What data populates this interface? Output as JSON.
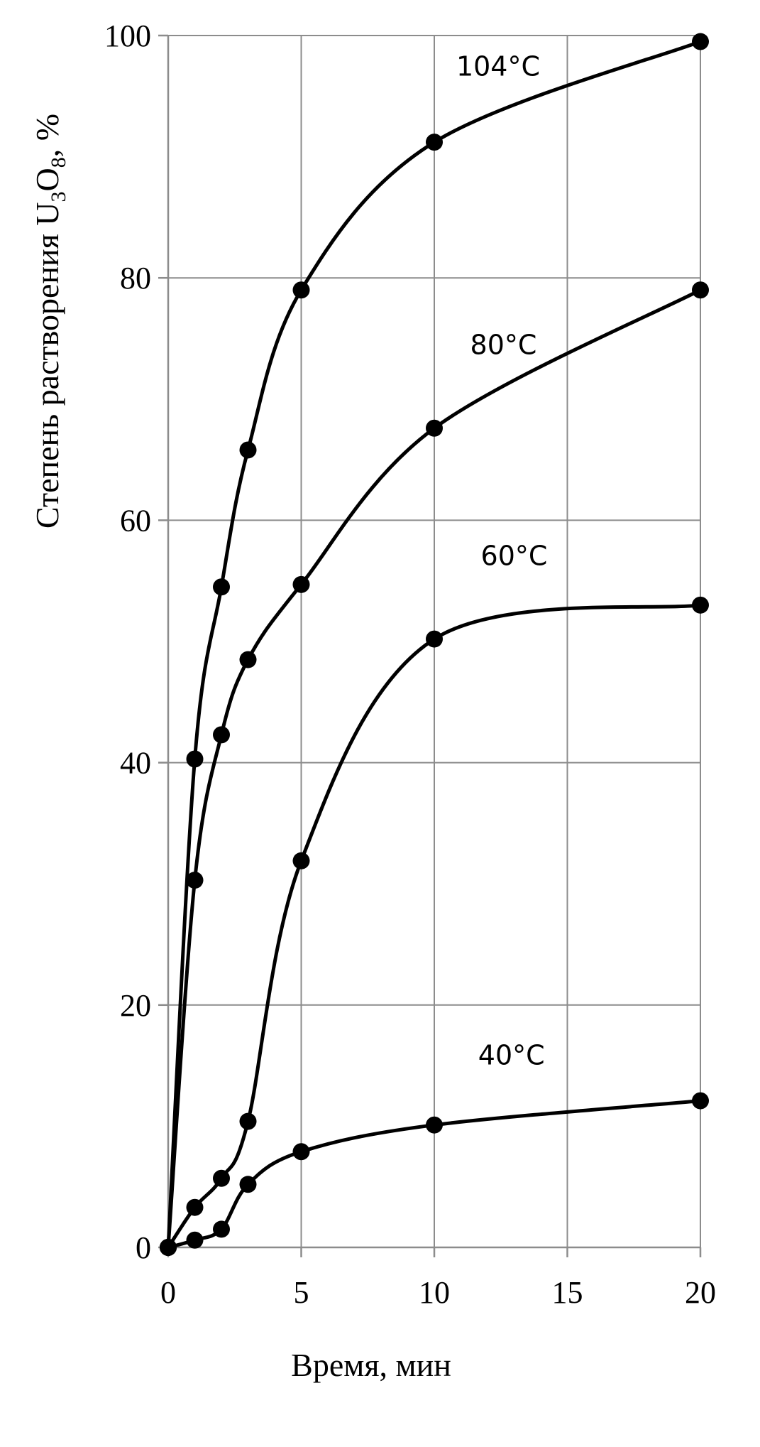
{
  "chart_data": {
    "type": "line",
    "xlabel": "Время, мин",
    "ylabel_parts": [
      "Степень растворения U",
      "3",
      "O",
      "8",
      ", %"
    ],
    "xlim": [
      0,
      20
    ],
    "ylim": [
      0,
      100
    ],
    "xticks": [
      0,
      5,
      10,
      15,
      20
    ],
    "yticks": [
      0,
      20,
      40,
      60,
      80,
      100
    ],
    "grid": true,
    "series": [
      {
        "name": "104°C",
        "x": [
          0,
          1,
          2,
          3,
          5,
          10,
          20
        ],
        "y": [
          0,
          40.3,
          54.5,
          65.8,
          79,
          91.2,
          99.5
        ]
      },
      {
        "name": "80°C",
        "x": [
          0,
          1,
          2,
          3,
          5,
          10,
          20
        ],
        "y": [
          0,
          30.3,
          42.3,
          48.5,
          54.7,
          67.6,
          79
        ]
      },
      {
        "name": "60°C",
        "x": [
          0,
          1,
          2,
          3,
          5,
          10,
          20
        ],
        "y": [
          0,
          3.3,
          5.7,
          10.4,
          31.9,
          50.2,
          53
        ]
      },
      {
        "name": "40°C",
        "x": [
          0,
          1,
          2,
          3,
          5,
          10,
          20
        ],
        "y": [
          0,
          0.6,
          1.5,
          5.2,
          7.9,
          10.1,
          12.1
        ]
      }
    ],
    "annotations": [
      {
        "series": 0,
        "text": "104°C",
        "x": 12.4,
        "y": 96.7
      },
      {
        "series": 1,
        "text": "80°C",
        "x": 12.6,
        "y": 73.7
      },
      {
        "series": 2,
        "text": "60°C",
        "x": 13,
        "y": 56.3
      },
      {
        "series": 3,
        "text": "40°C",
        "x": 12.9,
        "y": 15.1
      }
    ]
  }
}
